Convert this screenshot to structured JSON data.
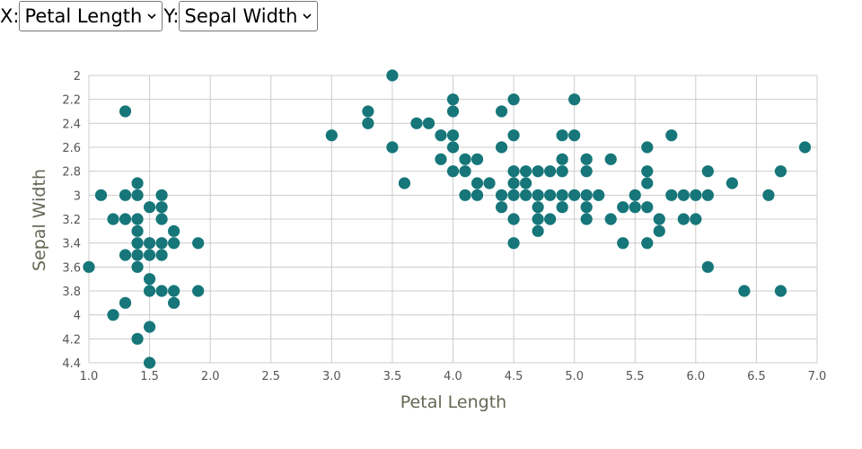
{
  "controls": {
    "x_label": "X:",
    "x_selected": "Petal Length",
    "y_label": "Y:",
    "y_selected": "Sepal Width"
  },
  "colors": {
    "point": "#167679",
    "grid": "#cccccc",
    "axis_text": "#555555"
  },
  "chart_data": {
    "type": "scatter",
    "xlabel": "Petal Length",
    "ylabel": "Sepal Width",
    "xlim": [
      1.0,
      7.0
    ],
    "ylim": [
      2.0,
      4.4
    ],
    "y_inverted": true,
    "grid": true,
    "x_ticks": [
      "1.0",
      "1.5",
      "2.0",
      "2.5",
      "3.0",
      "3.5",
      "4.0",
      "4.5",
      "5.0",
      "5.5",
      "6.0",
      "6.5",
      "7.0"
    ],
    "y_ticks": [
      "2",
      "2.2",
      "2.4",
      "2.6",
      "2.8",
      "3",
      "3.2",
      "3.4",
      "3.6",
      "3.8",
      "4",
      "4.2",
      "4.4"
    ],
    "points": [
      [
        1.0,
        3.6
      ],
      [
        1.1,
        3.0
      ],
      [
        1.2,
        3.2
      ],
      [
        1.2,
        4.0
      ],
      [
        1.3,
        2.3
      ],
      [
        1.3,
        3.0
      ],
      [
        1.3,
        3.2
      ],
      [
        1.3,
        3.5
      ],
      [
        1.3,
        3.9
      ],
      [
        1.4,
        2.9
      ],
      [
        1.4,
        3.0
      ],
      [
        1.4,
        3.2
      ],
      [
        1.4,
        3.3
      ],
      [
        1.4,
        3.4
      ],
      [
        1.4,
        3.5
      ],
      [
        1.4,
        3.6
      ],
      [
        1.4,
        4.2
      ],
      [
        1.5,
        3.1
      ],
      [
        1.5,
        3.4
      ],
      [
        1.5,
        3.5
      ],
      [
        1.5,
        3.7
      ],
      [
        1.5,
        3.8
      ],
      [
        1.5,
        4.1
      ],
      [
        1.5,
        4.4
      ],
      [
        1.6,
        3.0
      ],
      [
        1.6,
        3.1
      ],
      [
        1.6,
        3.2
      ],
      [
        1.6,
        3.4
      ],
      [
        1.6,
        3.5
      ],
      [
        1.6,
        3.8
      ],
      [
        1.7,
        3.3
      ],
      [
        1.7,
        3.4
      ],
      [
        1.7,
        3.8
      ],
      [
        1.7,
        3.9
      ],
      [
        1.9,
        3.4
      ],
      [
        1.9,
        3.8
      ],
      [
        3.0,
        2.5
      ],
      [
        3.3,
        2.3
      ],
      [
        3.3,
        2.4
      ],
      [
        3.5,
        2.0
      ],
      [
        3.5,
        2.6
      ],
      [
        3.6,
        2.9
      ],
      [
        3.7,
        2.4
      ],
      [
        3.8,
        2.4
      ],
      [
        3.9,
        2.5
      ],
      [
        3.9,
        2.7
      ],
      [
        4.0,
        2.2
      ],
      [
        4.0,
        2.3
      ],
      [
        4.0,
        2.5
      ],
      [
        4.0,
        2.6
      ],
      [
        4.0,
        2.8
      ],
      [
        4.1,
        2.7
      ],
      [
        4.1,
        2.8
      ],
      [
        4.1,
        3.0
      ],
      [
        4.2,
        2.7
      ],
      [
        4.2,
        2.9
      ],
      [
        4.2,
        3.0
      ],
      [
        4.3,
        2.9
      ],
      [
        4.4,
        2.3
      ],
      [
        4.4,
        2.6
      ],
      [
        4.4,
        3.0
      ],
      [
        4.4,
        3.1
      ],
      [
        4.5,
        2.2
      ],
      [
        4.5,
        2.5
      ],
      [
        4.5,
        2.8
      ],
      [
        4.5,
        2.9
      ],
      [
        4.5,
        3.0
      ],
      [
        4.5,
        3.2
      ],
      [
        4.5,
        3.4
      ],
      [
        4.6,
        2.8
      ],
      [
        4.6,
        2.9
      ],
      [
        4.6,
        3.0
      ],
      [
        4.7,
        2.8
      ],
      [
        4.7,
        3.0
      ],
      [
        4.7,
        3.1
      ],
      [
        4.7,
        3.2
      ],
      [
        4.7,
        3.3
      ],
      [
        4.8,
        2.8
      ],
      [
        4.8,
        3.0
      ],
      [
        4.8,
        3.2
      ],
      [
        4.9,
        2.5
      ],
      [
        4.9,
        2.7
      ],
      [
        4.9,
        2.8
      ],
      [
        4.9,
        3.0
      ],
      [
        4.9,
        3.1
      ],
      [
        5.0,
        2.2
      ],
      [
        5.0,
        2.5
      ],
      [
        5.0,
        3.0
      ],
      [
        5.1,
        2.7
      ],
      [
        5.1,
        2.8
      ],
      [
        5.1,
        3.0
      ],
      [
        5.1,
        3.1
      ],
      [
        5.1,
        3.2
      ],
      [
        5.2,
        3.0
      ],
      [
        5.3,
        2.7
      ],
      [
        5.3,
        3.2
      ],
      [
        5.4,
        3.1
      ],
      [
        5.4,
        3.4
      ],
      [
        5.5,
        3.0
      ],
      [
        5.5,
        3.1
      ],
      [
        5.6,
        2.6
      ],
      [
        5.6,
        2.8
      ],
      [
        5.6,
        2.9
      ],
      [
        5.6,
        3.1
      ],
      [
        5.6,
        3.4
      ],
      [
        5.7,
        3.2
      ],
      [
        5.7,
        3.3
      ],
      [
        5.8,
        2.5
      ],
      [
        5.8,
        3.0
      ],
      [
        5.9,
        3.0
      ],
      [
        5.9,
        3.2
      ],
      [
        6.0,
        3.0
      ],
      [
        6.0,
        3.2
      ],
      [
        6.1,
        2.8
      ],
      [
        6.1,
        3.0
      ],
      [
        6.1,
        3.6
      ],
      [
        6.3,
        2.9
      ],
      [
        6.4,
        3.8
      ],
      [
        6.6,
        3.0
      ],
      [
        6.7,
        2.8
      ],
      [
        6.7,
        3.8
      ],
      [
        6.9,
        2.6
      ]
    ]
  }
}
